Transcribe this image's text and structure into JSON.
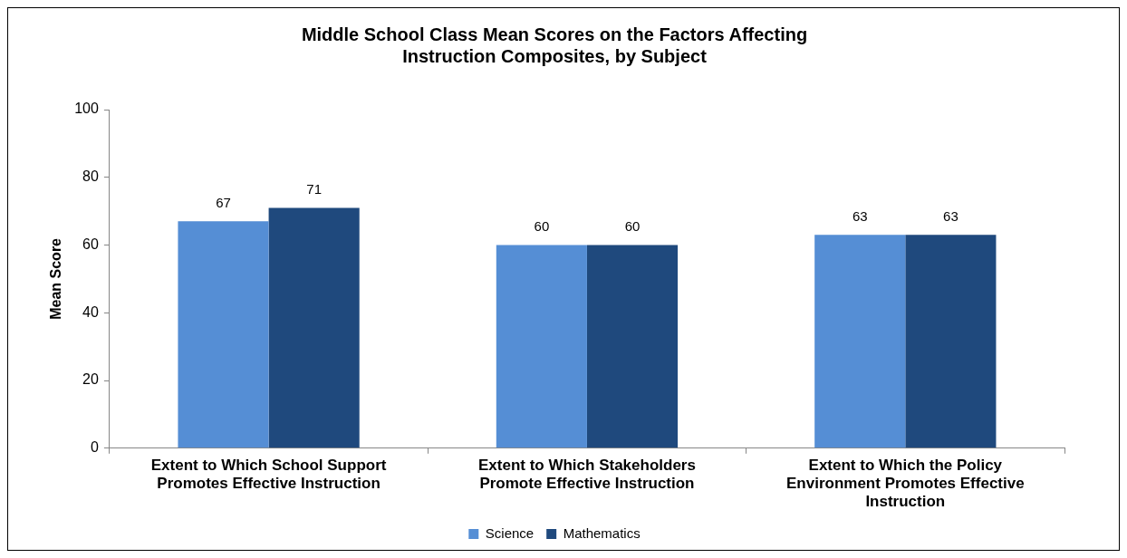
{
  "chart_data": {
    "type": "bar",
    "title": "Middle School Class Mean Scores on the Factors Affecting Instruction Composites, by Subject",
    "ylabel": "Mean Score",
    "categories": [
      "Extent to Which School Support Promotes Effective Instruction",
      "Extent to Which Stakeholders Promote Effective Instruction",
      "Extent to Which the Policy Environment Promotes Effective Instruction"
    ],
    "series": [
      {
        "name": "Science",
        "color": "#558ed5",
        "values": [
          67,
          60,
          63
        ]
      },
      {
        "name": "Mathematics",
        "color": "#1f497d",
        "values": [
          71,
          60,
          63
        ]
      }
    ],
    "ylim": [
      0,
      100
    ],
    "yticks": [
      0,
      20,
      40,
      60,
      80,
      100
    ],
    "grid": false,
    "legend": "bottom",
    "data_labels": true
  }
}
